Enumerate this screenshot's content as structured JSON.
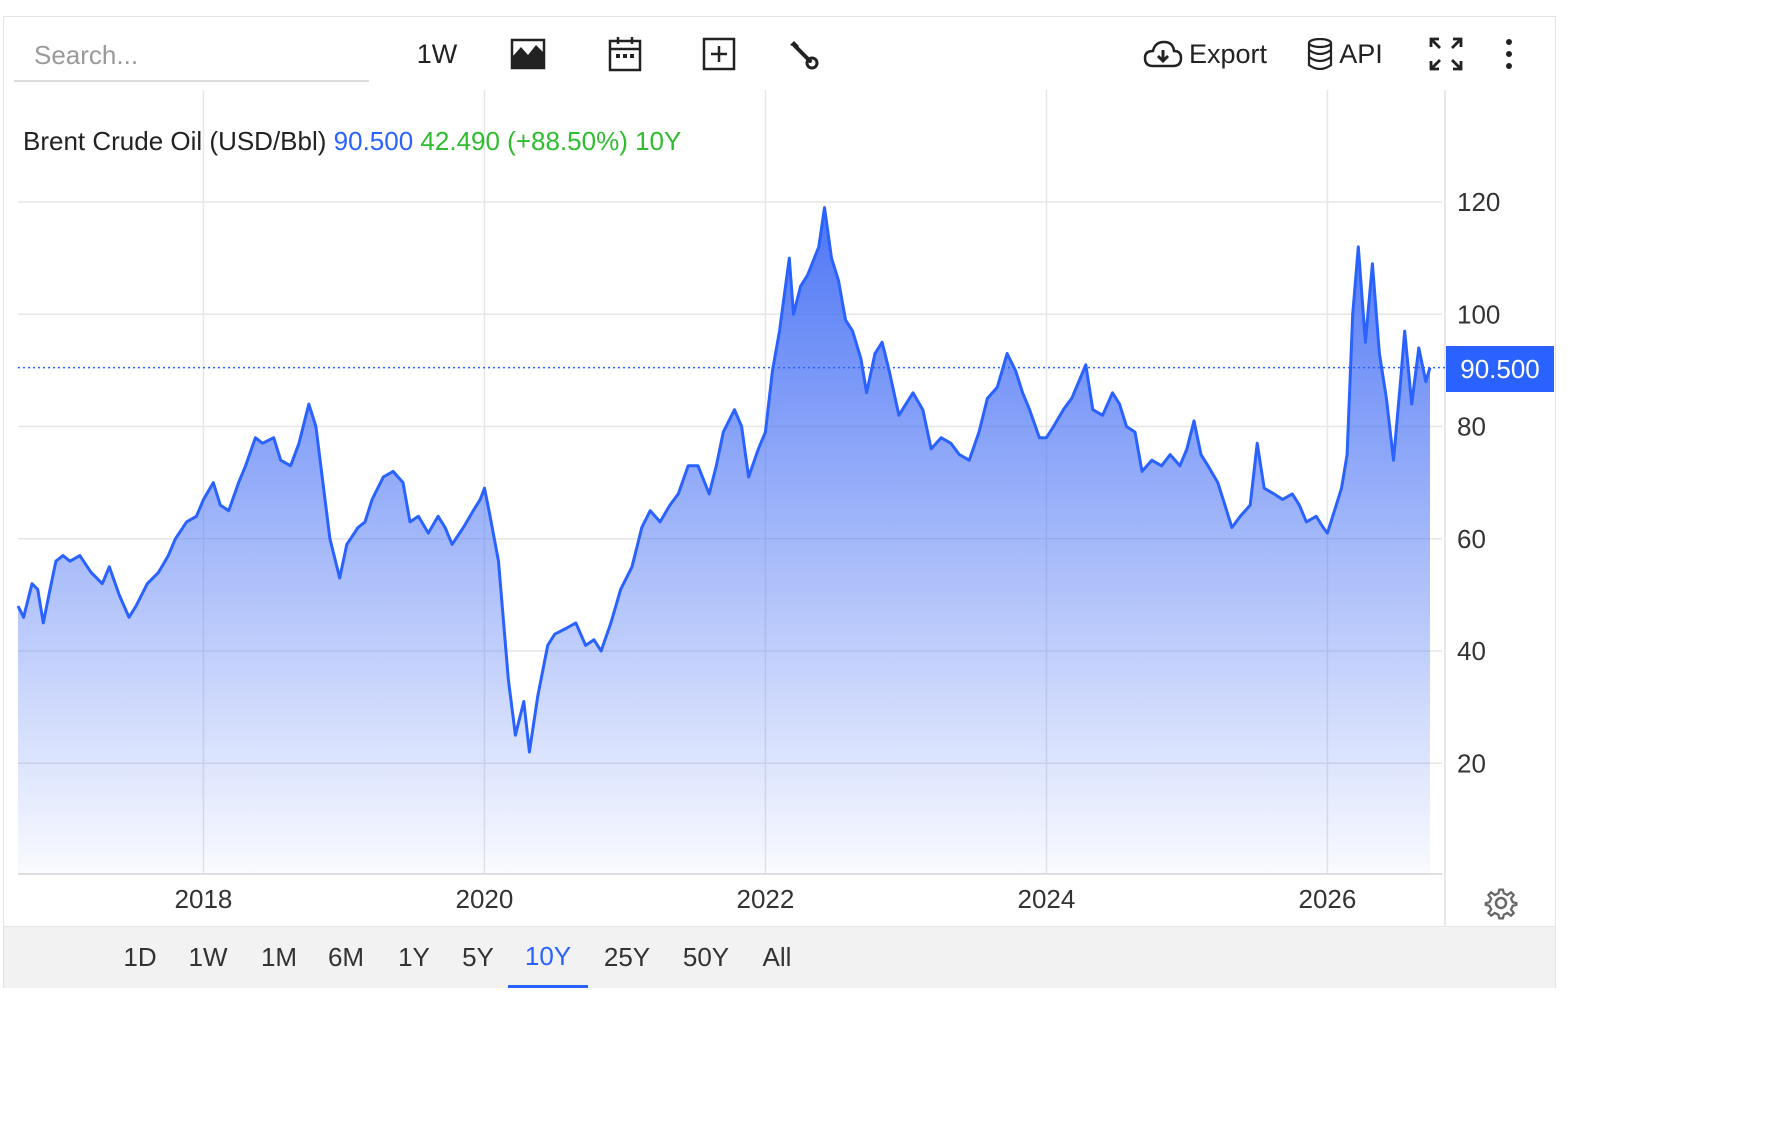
{
  "search": {
    "placeholder": "Search..."
  },
  "toolbar": {
    "interval_label": "1W",
    "export_label": "Export",
    "api_label": "API",
    "icons": [
      "area-chart-icon",
      "calendar-icon",
      "add-compare-icon",
      "wrench-icon",
      "cloud-download-icon",
      "database-icon",
      "fullscreen-icon",
      "kebab-menu-icon"
    ]
  },
  "legend": {
    "name": "Brent Crude Oil (USD/Bbl)",
    "last": "90.500",
    "change": "42.490 (+88.50%)",
    "period": "10Y"
  },
  "last_badge": "90.500",
  "colors": {
    "line": "#2962ff",
    "fill_top": "#4e76f5",
    "grid": "#e6e6e6",
    "change": "#2ebd2e",
    "badge": "#2962ff"
  },
  "chart_data": {
    "type": "area",
    "title": "Brent Crude Oil (USD/Bbl)",
    "ylim": [
      0,
      135
    ],
    "xlim": [
      2016.68,
      2026.73
    ],
    "y_ticks": [
      "20",
      "40",
      "60",
      "80",
      "100",
      "120"
    ],
    "x_ticks": [
      "2018",
      "2020",
      "2022",
      "2024",
      "2026"
    ],
    "grid": true,
    "last_value": 90.5,
    "series": [
      {
        "name": "Brent Crude Oil (USD/Bbl)",
        "points": [
          [
            2016.68,
            48
          ],
          [
            2016.72,
            46
          ],
          [
            2016.78,
            52
          ],
          [
            2016.82,
            51
          ],
          [
            2016.86,
            45
          ],
          [
            2016.9,
            50
          ],
          [
            2016.95,
            56
          ],
          [
            2017.0,
            57
          ],
          [
            2017.05,
            56
          ],
          [
            2017.12,
            57
          ],
          [
            2017.2,
            54
          ],
          [
            2017.28,
            52
          ],
          [
            2017.33,
            55
          ],
          [
            2017.4,
            50
          ],
          [
            2017.47,
            46
          ],
          [
            2017.52,
            48
          ],
          [
            2017.6,
            52
          ],
          [
            2017.68,
            54
          ],
          [
            2017.75,
            57
          ],
          [
            2017.8,
            60
          ],
          [
            2017.88,
            63
          ],
          [
            2017.95,
            64
          ],
          [
            2018.0,
            67
          ],
          [
            2018.07,
            70
          ],
          [
            2018.12,
            66
          ],
          [
            2018.18,
            65
          ],
          [
            2018.25,
            70
          ],
          [
            2018.3,
            73
          ],
          [
            2018.37,
            78
          ],
          [
            2018.42,
            77
          ],
          [
            2018.5,
            78
          ],
          [
            2018.55,
            74
          ],
          [
            2018.62,
            73
          ],
          [
            2018.68,
            77
          ],
          [
            2018.75,
            84
          ],
          [
            2018.8,
            80
          ],
          [
            2018.85,
            70
          ],
          [
            2018.9,
            60
          ],
          [
            2018.97,
            53
          ],
          [
            2019.02,
            59
          ],
          [
            2019.1,
            62
          ],
          [
            2019.15,
            63
          ],
          [
            2019.2,
            67
          ],
          [
            2019.28,
            71
          ],
          [
            2019.35,
            72
          ],
          [
            2019.42,
            70
          ],
          [
            2019.47,
            63
          ],
          [
            2019.53,
            64
          ],
          [
            2019.6,
            61
          ],
          [
            2019.67,
            64
          ],
          [
            2019.72,
            62
          ],
          [
            2019.77,
            59
          ],
          [
            2019.85,
            62
          ],
          [
            2019.92,
            65
          ],
          [
            2019.97,
            67
          ],
          [
            2020.0,
            69
          ],
          [
            2020.04,
            64
          ],
          [
            2020.1,
            56
          ],
          [
            2020.17,
            35
          ],
          [
            2020.22,
            25
          ],
          [
            2020.28,
            31
          ],
          [
            2020.32,
            22
          ],
          [
            2020.38,
            32
          ],
          [
            2020.45,
            41
          ],
          [
            2020.5,
            43
          ],
          [
            2020.58,
            44
          ],
          [
            2020.65,
            45
          ],
          [
            2020.72,
            41
          ],
          [
            2020.78,
            42
          ],
          [
            2020.83,
            40
          ],
          [
            2020.9,
            45
          ],
          [
            2020.97,
            51
          ],
          [
            2021.05,
            55
          ],
          [
            2021.12,
            62
          ],
          [
            2021.18,
            65
          ],
          [
            2021.25,
            63
          ],
          [
            2021.32,
            66
          ],
          [
            2021.38,
            68
          ],
          [
            2021.45,
            73
          ],
          [
            2021.52,
            73
          ],
          [
            2021.6,
            68
          ],
          [
            2021.65,
            73
          ],
          [
            2021.7,
            79
          ],
          [
            2021.78,
            83
          ],
          [
            2021.83,
            80
          ],
          [
            2021.88,
            71
          ],
          [
            2021.95,
            76
          ],
          [
            2022.0,
            79
          ],
          [
            2022.05,
            90
          ],
          [
            2022.1,
            97
          ],
          [
            2022.17,
            110
          ],
          [
            2022.2,
            100
          ],
          [
            2022.25,
            105
          ],
          [
            2022.3,
            107
          ],
          [
            2022.38,
            112
          ],
          [
            2022.42,
            119
          ],
          [
            2022.47,
            110
          ],
          [
            2022.52,
            106
          ],
          [
            2022.57,
            99
          ],
          [
            2022.62,
            97
          ],
          [
            2022.68,
            92
          ],
          [
            2022.72,
            86
          ],
          [
            2022.78,
            93
          ],
          [
            2022.83,
            95
          ],
          [
            2022.88,
            90
          ],
          [
            2022.95,
            82
          ],
          [
            2023.0,
            84
          ],
          [
            2023.05,
            86
          ],
          [
            2023.12,
            83
          ],
          [
            2023.18,
            76
          ],
          [
            2023.25,
            78
          ],
          [
            2023.32,
            77
          ],
          [
            2023.38,
            75
          ],
          [
            2023.45,
            74
          ],
          [
            2023.52,
            79
          ],
          [
            2023.58,
            85
          ],
          [
            2023.65,
            87
          ],
          [
            2023.72,
            93
          ],
          [
            2023.78,
            90
          ],
          [
            2023.83,
            86
          ],
          [
            2023.88,
            83
          ],
          [
            2023.95,
            78
          ],
          [
            2024.0,
            78
          ],
          [
            2024.05,
            80
          ],
          [
            2024.12,
            83
          ],
          [
            2024.18,
            85
          ],
          [
            2024.23,
            88
          ],
          [
            2024.28,
            91
          ],
          [
            2024.33,
            83
          ],
          [
            2024.4,
            82
          ],
          [
            2024.47,
            86
          ],
          [
            2024.52,
            84
          ],
          [
            2024.57,
            80
          ],
          [
            2024.63,
            79
          ],
          [
            2024.68,
            72
          ],
          [
            2024.75,
            74
          ],
          [
            2024.82,
            73
          ],
          [
            2024.88,
            75
          ],
          [
            2024.95,
            73
          ],
          [
            2025.0,
            76
          ],
          [
            2025.05,
            81
          ],
          [
            2025.1,
            75
          ],
          [
            2025.15,
            73
          ],
          [
            2025.22,
            70
          ],
          [
            2025.27,
            66
          ],
          [
            2025.32,
            62
          ],
          [
            2025.38,
            64
          ],
          [
            2025.45,
            66
          ],
          [
            2025.5,
            77
          ],
          [
            2025.55,
            69
          ],
          [
            2025.62,
            68
          ],
          [
            2025.68,
            67
          ],
          [
            2025.75,
            68
          ],
          [
            2025.8,
            66
          ],
          [
            2025.85,
            63
          ],
          [
            2025.92,
            64
          ],
          [
            2025.97,
            62
          ],
          [
            2026.0,
            61
          ],
          [
            2026.05,
            65
          ],
          [
            2026.1,
            69
          ],
          [
            2026.14,
            75
          ],
          [
            2026.18,
            100
          ],
          [
            2026.22,
            112
          ],
          [
            2026.27,
            95
          ],
          [
            2026.32,
            109
          ],
          [
            2026.37,
            93
          ],
          [
            2026.42,
            85
          ],
          [
            2026.47,
            74
          ],
          [
            2026.52,
            88
          ],
          [
            2026.55,
            97
          ],
          [
            2026.6,
            84
          ],
          [
            2026.65,
            94
          ],
          [
            2026.7,
            88
          ],
          [
            2026.73,
            90.5
          ]
        ]
      }
    ]
  },
  "range_buttons": [
    {
      "label": "1D",
      "active": false
    },
    {
      "label": "1W",
      "active": false
    },
    {
      "label": "1M",
      "active": false
    },
    {
      "label": "6M",
      "active": false
    },
    {
      "label": "1Y",
      "active": false
    },
    {
      "label": "5Y",
      "active": false
    },
    {
      "label": "10Y",
      "active": true
    },
    {
      "label": "25Y",
      "active": false
    },
    {
      "label": "50Y",
      "active": false
    },
    {
      "label": "All",
      "active": false
    }
  ]
}
